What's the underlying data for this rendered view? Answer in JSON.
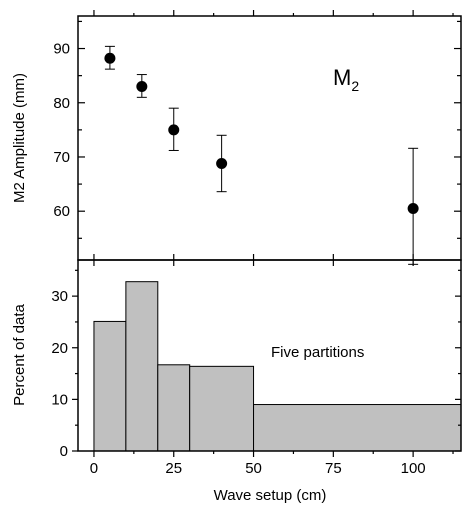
{
  "chart_data": [
    {
      "type": "scatter",
      "ylabel": "M2 Amplitude (mm)",
      "annotation": {
        "main": "M",
        "subscript": "2"
      },
      "xlim": [
        -5,
        115
      ],
      "ylim": [
        51,
        96
      ],
      "xticks": [
        0,
        25,
        50,
        75,
        100
      ],
      "yticks": [
        60,
        70,
        80,
        90
      ],
      "yticklabels": [
        "60",
        "70",
        "80",
        "90"
      ],
      "points": [
        {
          "x": 5,
          "y": 88.2,
          "err_low": 86.2,
          "err_high": 90.4
        },
        {
          "x": 15,
          "y": 83.0,
          "err_low": 81.0,
          "err_high": 85.2
        },
        {
          "x": 25,
          "y": 75.0,
          "err_low": 71.2,
          "err_high": 79.0
        },
        {
          "x": 40,
          "y": 68.8,
          "err_low": 63.6,
          "err_high": 74.0
        },
        {
          "x": 100,
          "y": 60.5,
          "err_low": 50.2,
          "err_high": 71.6
        }
      ]
    },
    {
      "type": "bar",
      "ylabel": "Percent of data",
      "xlabel": "Wave setup (cm)",
      "annotation": "Five partitions",
      "xlim": [
        -5,
        115
      ],
      "ylim": [
        0,
        37
      ],
      "xticks": [
        0,
        25,
        50,
        75,
        100
      ],
      "xticklabels": [
        "0",
        "25",
        "50",
        "75",
        "100"
      ],
      "yticks": [
        0,
        10,
        20,
        30
      ],
      "yticklabels": [
        "0",
        "10",
        "20",
        "30"
      ],
      "bar_color": "#c0c0c0",
      "bars": [
        {
          "x0": 0,
          "x1": 10,
          "value": 25.1
        },
        {
          "x0": 10,
          "x1": 20,
          "value": 32.8
        },
        {
          "x0": 20,
          "x1": 30,
          "value": 16.7
        },
        {
          "x0": 30,
          "x1": 50,
          "value": 16.4
        },
        {
          "x0": 50,
          "x1": 115,
          "value": 9.0
        }
      ]
    }
  ]
}
